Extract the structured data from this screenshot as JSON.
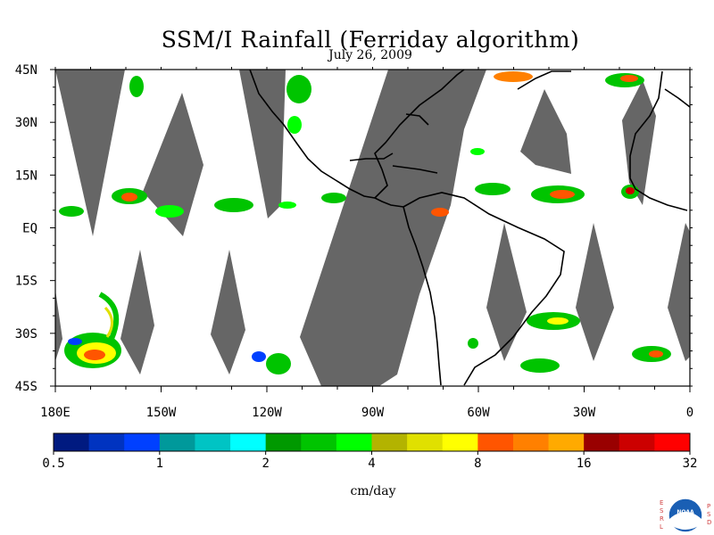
{
  "title": "SSM/I Rainfall (Ferriday algorithm)",
  "subtitle": "July 26, 2009",
  "map": {
    "lon_labels": [
      "180E",
      "150W",
      "120W",
      "90W",
      "60W",
      "30W",
      "0"
    ],
    "lat_labels": [
      "45N",
      "30N",
      "15N",
      "EQ",
      "15S",
      "30S",
      "45S"
    ],
    "gap_color": "#666666",
    "land_outline_color": "#000000"
  },
  "colorbar": {
    "tick_labels": [
      "0.5",
      "1",
      "2",
      "4",
      "8",
      "16",
      "32"
    ],
    "unit_label": "cm/day",
    "colors": [
      "#001a80",
      "#0033c0",
      "#0040ff",
      "#00999b",
      "#00c4c4",
      "#00ffff",
      "#009900",
      "#00c400",
      "#00ff00",
      "#b3b300",
      "#e0e000",
      "#ffff00",
      "#ff5500",
      "#ff8000",
      "#ffaa00",
      "#990000",
      "#cc0000",
      "#ff0000"
    ]
  },
  "logo": {
    "left_letters": [
      "E",
      "S",
      "R",
      "L"
    ],
    "right_letters": [
      "P",
      "S",
      "D"
    ],
    "emblem_text": "NOAA"
  }
}
